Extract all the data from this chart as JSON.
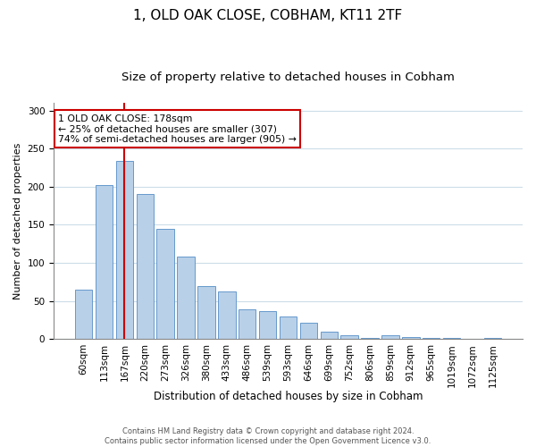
{
  "title": "1, OLD OAK CLOSE, COBHAM, KT11 2TF",
  "subtitle": "Size of property relative to detached houses in Cobham",
  "xlabel": "Distribution of detached houses by size in Cobham",
  "ylabel": "Number of detached properties",
  "bar_labels": [
    "60sqm",
    "113sqm",
    "167sqm",
    "220sqm",
    "273sqm",
    "326sqm",
    "380sqm",
    "433sqm",
    "486sqm",
    "539sqm",
    "593sqm",
    "646sqm",
    "699sqm",
    "752sqm",
    "806sqm",
    "859sqm",
    "912sqm",
    "965sqm",
    "1019sqm",
    "1072sqm",
    "1125sqm"
  ],
  "bar_values": [
    65,
    202,
    234,
    190,
    145,
    108,
    70,
    62,
    39,
    37,
    30,
    21,
    10,
    5,
    1,
    5,
    3,
    1,
    1,
    0,
    1
  ],
  "bar_color": "#b8d0e8",
  "bar_edge_color": "#6699cc",
  "vline_x_index": 2,
  "vline_color": "#cc0000",
  "annotation_title": "1 OLD OAK CLOSE: 178sqm",
  "annotation_line1": "← 25% of detached houses are smaller (307)",
  "annotation_line2": "74% of semi-detached houses are larger (905) →",
  "annotation_box_color": "#cc0000",
  "footer_line1": "Contains HM Land Registry data © Crown copyright and database right 2024.",
  "footer_line2": "Contains public sector information licensed under the Open Government Licence v3.0.",
  "ylim": [
    0,
    310
  ],
  "yticks": [
    0,
    50,
    100,
    150,
    200,
    250,
    300
  ],
  "title_fontsize": 11,
  "subtitle_fontsize": 9.5,
  "xlabel_fontsize": 8.5,
  "ylabel_fontsize": 8,
  "tick_fontsize": 7.5,
  "annot_fontsize": 7.8,
  "footer_fontsize": 6,
  "background_color": "#ffffff",
  "grid_color": "#ccdde8"
}
